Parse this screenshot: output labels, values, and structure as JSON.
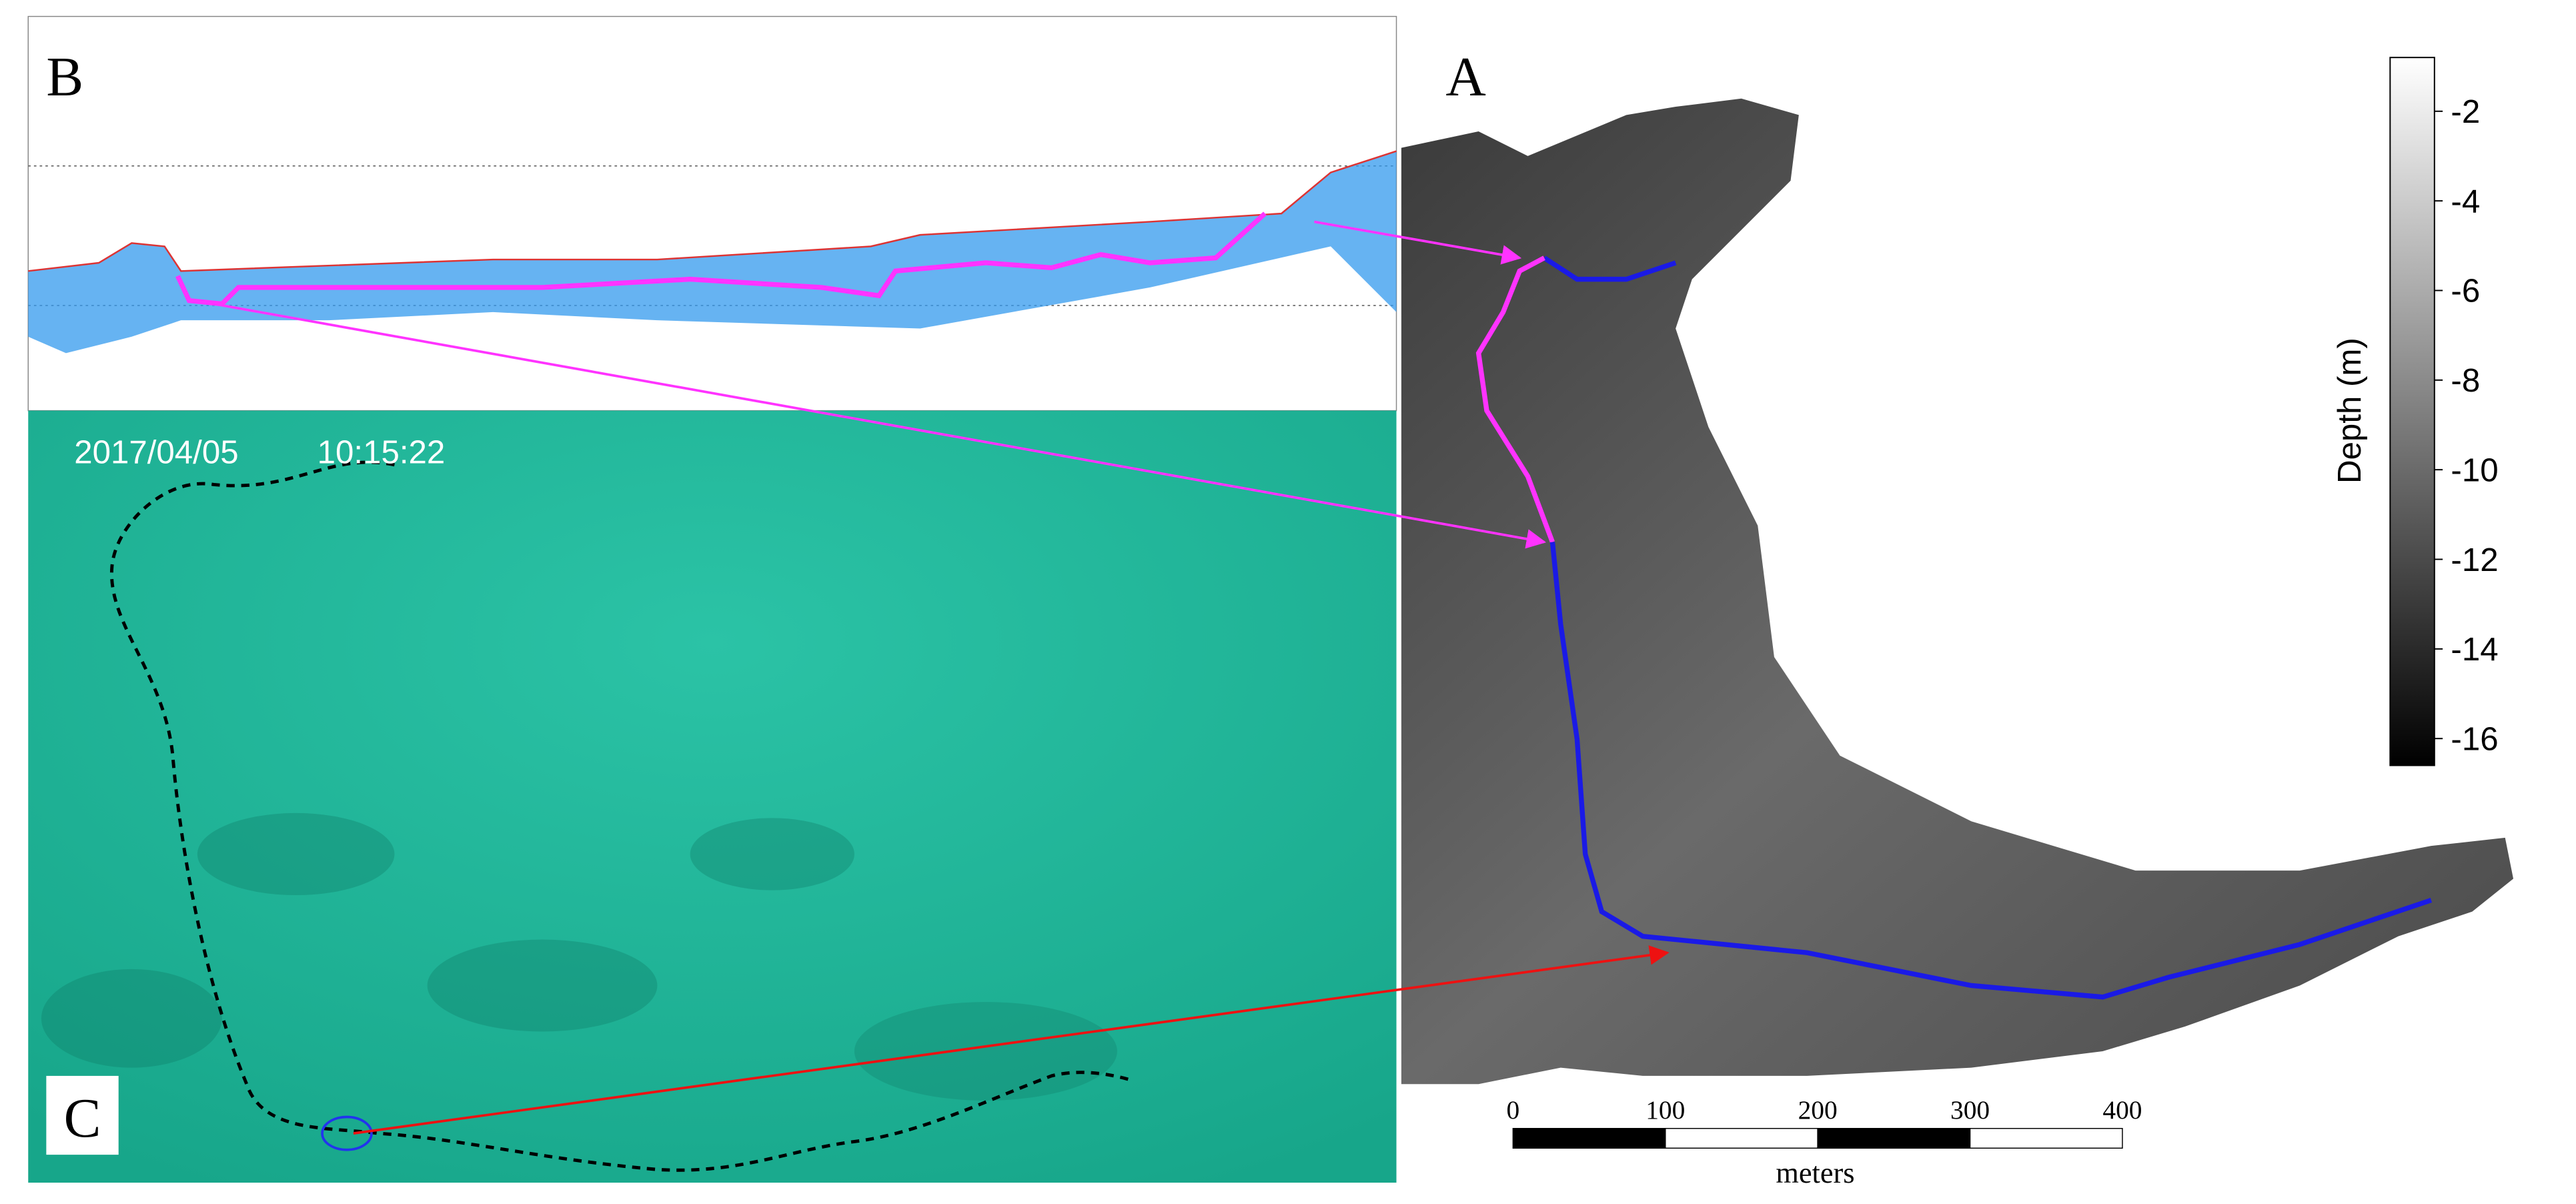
{
  "panel_b": {
    "label": "B"
  },
  "panel_c": {
    "label": "C",
    "date": "2017/04/05",
    "time": "10:15:22"
  },
  "panel_a": {
    "label": "A",
    "colorbar": {
      "label": "Depth (m)",
      "lim": [
        -16.6,
        -0.8
      ],
      "ticks": [
        -2,
        -4,
        -6,
        -8,
        -10,
        -12,
        -14,
        -16
      ]
    },
    "scale_bar": {
      "unit": "meters",
      "lim": [
        0,
        400
      ],
      "ticks": [
        0,
        100,
        200,
        300,
        400
      ]
    }
  }
}
